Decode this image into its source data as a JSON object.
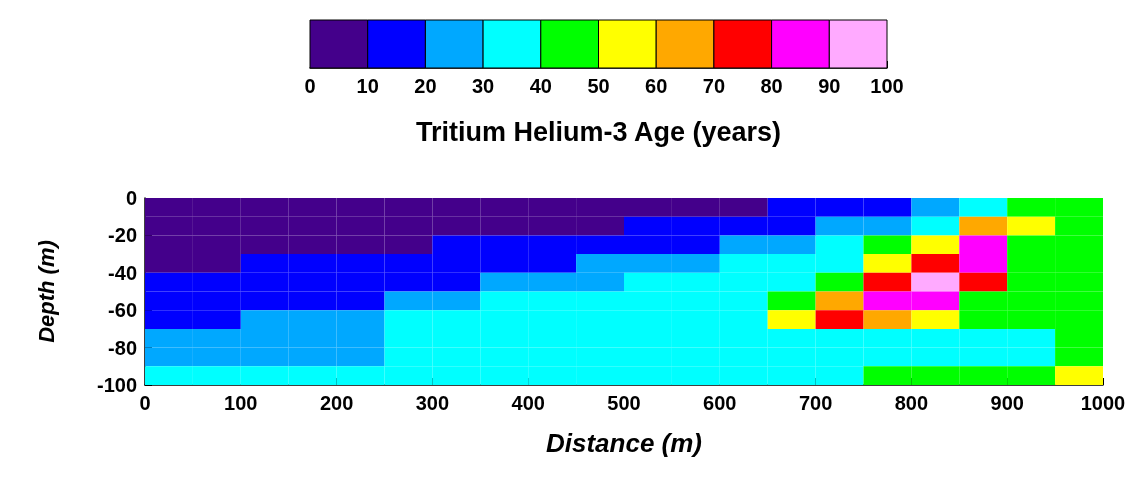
{
  "chart_data": {
    "type": "heatmap",
    "clabel": "Tritium Helium-3 Age (years)",
    "xlabel": "Distance (m)",
    "ylabel": "Depth (m)",
    "clim": [
      0,
      100
    ],
    "cticks": [
      0,
      10,
      20,
      30,
      40,
      50,
      60,
      70,
      80,
      90,
      100
    ],
    "colors": [
      "#44008b",
      "#0000ff",
      "#00a8ff",
      "#00ffff",
      "#00ff00",
      "#ffff00",
      "#ffa800",
      "#ff0000",
      "#ff00ff",
      "#ffaaff"
    ],
    "xlim": [
      0,
      1000
    ],
    "xticks": [
      0,
      100,
      200,
      300,
      400,
      500,
      600,
      700,
      800,
      900,
      1000
    ],
    "ylim": [
      -100,
      0
    ],
    "yticks": [
      -100,
      -80,
      -60,
      -40,
      -20,
      0
    ],
    "x": [
      25,
      75,
      125,
      175,
      225,
      275,
      325,
      375,
      425,
      475,
      525,
      575,
      625,
      675,
      725,
      775,
      825,
      875,
      925,
      975
    ],
    "y": [
      -5,
      -15,
      -25,
      -35,
      -45,
      -55,
      -65,
      -75,
      -85,
      -95
    ],
    "cells": [
      [
        5,
        5,
        5,
        5,
        5,
        5,
        5,
        5,
        5,
        5,
        5,
        5,
        5,
        15,
        15,
        15,
        25,
        35,
        45,
        45
      ],
      [
        5,
        5,
        5,
        5,
        5,
        5,
        5,
        5,
        5,
        5,
        15,
        15,
        15,
        15,
        25,
        25,
        35,
        65,
        55,
        45
      ],
      [
        5,
        5,
        5,
        5,
        5,
        5,
        15,
        15,
        15,
        15,
        15,
        15,
        25,
        25,
        35,
        45,
        55,
        85,
        45,
        45
      ],
      [
        5,
        5,
        15,
        15,
        15,
        15,
        15,
        15,
        15,
        25,
        25,
        25,
        35,
        35,
        35,
        55,
        75,
        85,
        45,
        45
      ],
      [
        15,
        15,
        15,
        15,
        15,
        15,
        15,
        25,
        25,
        25,
        35,
        35,
        35,
        35,
        45,
        75,
        95,
        75,
        45,
        45
      ],
      [
        15,
        15,
        15,
        15,
        15,
        25,
        25,
        35,
        35,
        35,
        35,
        35,
        35,
        45,
        65,
        85,
        85,
        45,
        45,
        45
      ],
      [
        15,
        15,
        25,
        25,
        25,
        35,
        35,
        35,
        35,
        35,
        35,
        35,
        35,
        55,
        75,
        65,
        55,
        45,
        45,
        45
      ],
      [
        25,
        25,
        25,
        25,
        25,
        35,
        35,
        35,
        35,
        35,
        35,
        35,
        35,
        35,
        35,
        35,
        35,
        35,
        35,
        45
      ],
      [
        25,
        25,
        25,
        25,
        25,
        35,
        35,
        35,
        35,
        35,
        35,
        35,
        35,
        35,
        35,
        35,
        35,
        35,
        35,
        45
      ],
      [
        35,
        35,
        35,
        35,
        35,
        35,
        35,
        35,
        35,
        35,
        35,
        35,
        35,
        35,
        35,
        45,
        45,
        45,
        45,
        55
      ]
    ]
  }
}
